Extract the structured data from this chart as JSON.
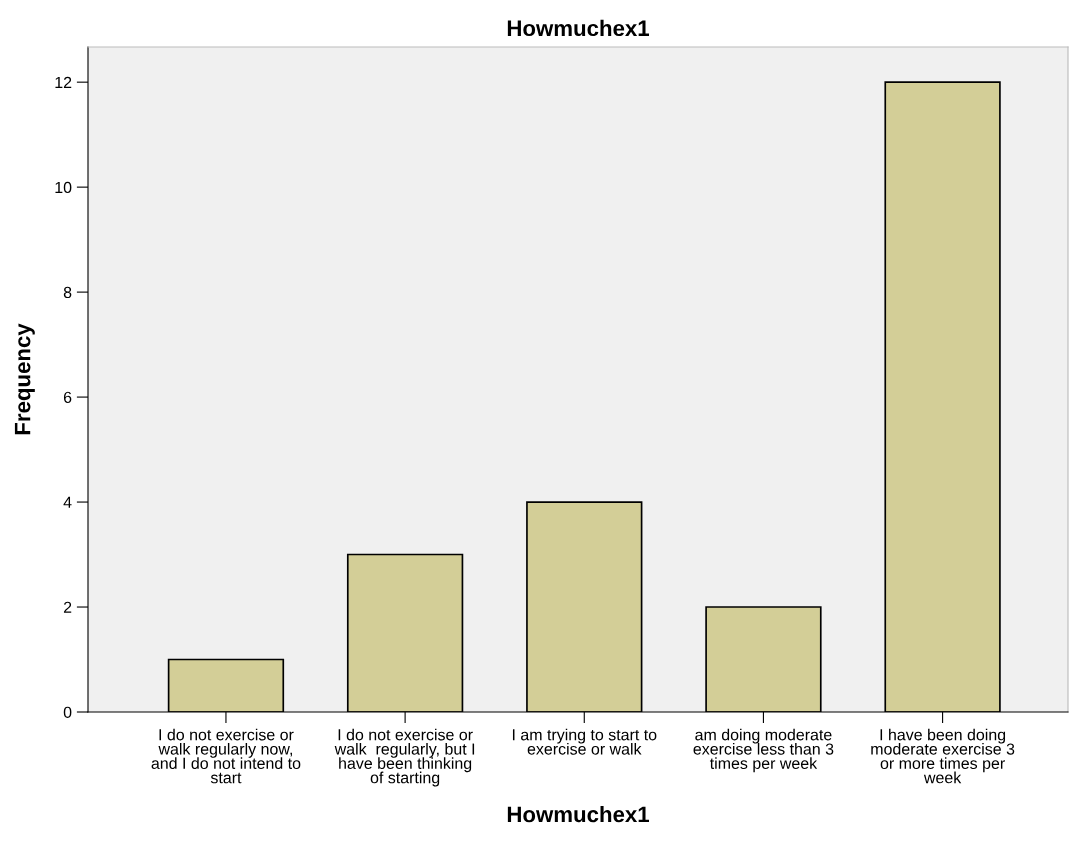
{
  "chart_data": {
    "type": "bar",
    "title": "Howmuchex1",
    "xlabel": "Howmuchex1",
    "ylabel": "Frequency",
    "categories": [
      "I do not exercise or\nwalk regularly now,\nand I do not intend to\nstart",
      "I do not exercise or\nwalk  regularly, but I\nhave been thinking\nof starting",
      "I am trying to start to\nexercise or walk",
      "am doing moderate\nexercise less than 3\ntimes per week",
      "I have been doing\nmoderate exercise 3\nor more times per\nweek"
    ],
    "values": [
      1,
      3,
      4,
      2,
      12
    ],
    "color": "#d3ce97",
    "ylim": [
      0,
      12.67
    ],
    "yticks": [
      0,
      2,
      4,
      6,
      8,
      10,
      12
    ],
    "grid": false
  }
}
